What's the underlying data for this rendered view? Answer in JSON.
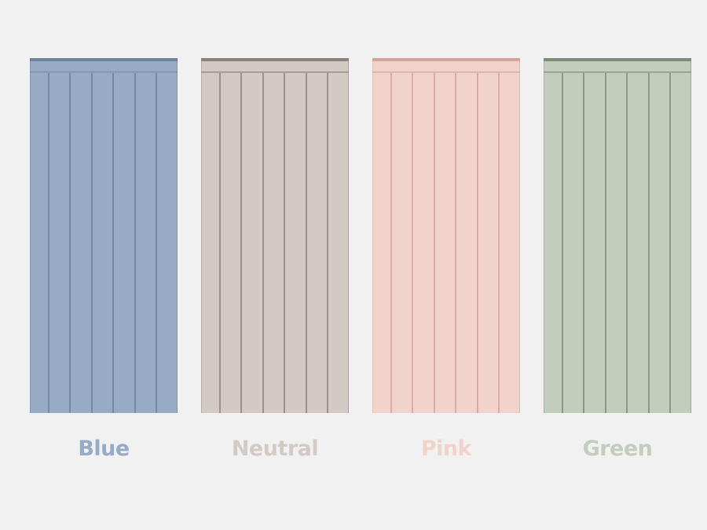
{
  "swatches": [
    {
      "label": "Blue",
      "body": "#98abc4",
      "dark": "#6c829d"
    },
    {
      "label": "Neutral",
      "body": "#d3cac5",
      "dark": "#8b827e"
    },
    {
      "label": "Pink",
      "body": "#f1d3cb",
      "dark": "#d2a49d"
    },
    {
      "label": "Green",
      "body": "#c2cebb",
      "dark": "#7d8b78"
    }
  ]
}
